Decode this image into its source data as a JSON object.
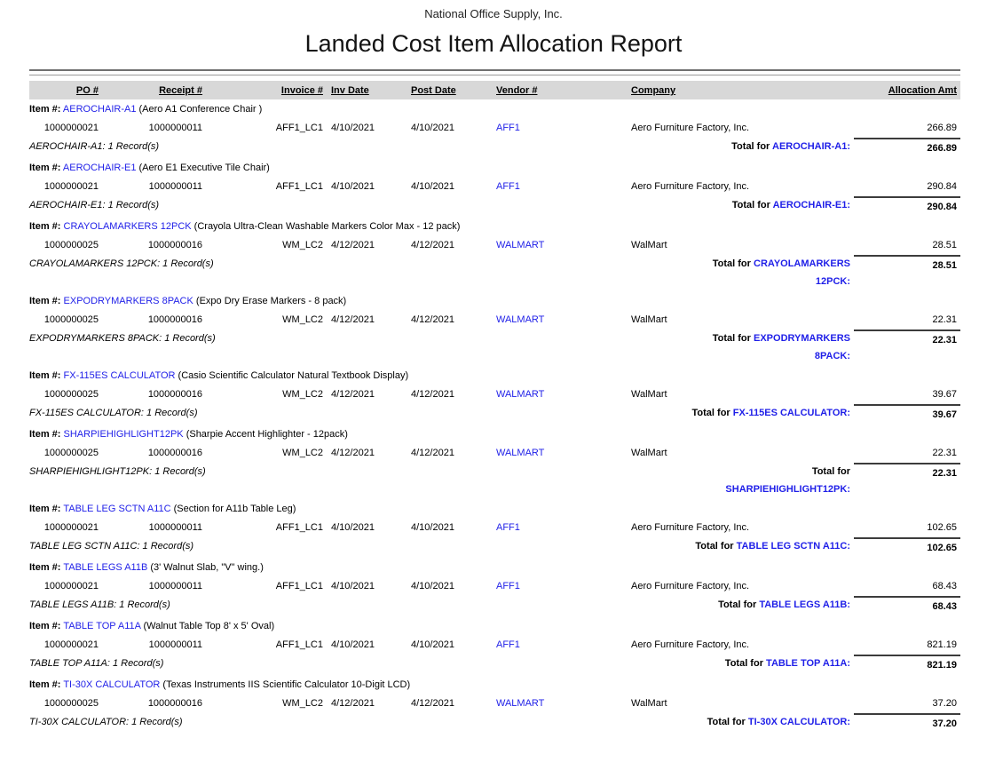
{
  "report": {
    "company_name": "National Office Supply, Inc.",
    "title": "Landed Cost Item Allocation Report"
  },
  "labels": {
    "item_prefix": "Item #:",
    "total_prefix": "Total for"
  },
  "columns": [
    "PO #",
    "Receipt #",
    "Invoice #",
    "Inv Date",
    "Post Date",
    "Vendor #",
    "Company",
    "Allocation Amt"
  ],
  "colors": {
    "link_blue": "#1f1fe8",
    "header_band": "#d8d8d8"
  },
  "groups": [
    {
      "item_code": "AEROCHAIR-A1",
      "item_desc": "(Aero A1 Conference Chair )",
      "rows": [
        {
          "po": "1000000021",
          "receipt": "1000000011",
          "invoice": "AFF1_LC1",
          "inv_date": "4/10/2021",
          "post_date": "4/10/2021",
          "vendor": "AFF1",
          "company": "Aero Furniture Factory, Inc.",
          "amount": "266.89"
        }
      ],
      "records_text": "AEROCHAIR-A1: 1 Record(s)",
      "total": {
        "prefix": "Total for",
        "code_line1": "AEROCHAIR-A1:",
        "code_line2": "",
        "amount": "266.89"
      }
    },
    {
      "item_code": "AEROCHAIR-E1",
      "item_desc": "(Aero E1 Executive Tile Chair)",
      "rows": [
        {
          "po": "1000000021",
          "receipt": "1000000011",
          "invoice": "AFF1_LC1",
          "inv_date": "4/10/2021",
          "post_date": "4/10/2021",
          "vendor": "AFF1",
          "company": "Aero Furniture Factory, Inc.",
          "amount": "290.84"
        }
      ],
      "records_text": "AEROCHAIR-E1: 1 Record(s)",
      "total": {
        "prefix": "Total for",
        "code_line1": "AEROCHAIR-E1:",
        "code_line2": "",
        "amount": "290.84"
      }
    },
    {
      "item_code": "CRAYOLAMARKERS 12PCK",
      "item_desc": "(Crayola Ultra-Clean Washable Markers Color Max - 12 pack)",
      "rows": [
        {
          "po": "1000000025",
          "receipt": "1000000016",
          "invoice": "WM_LC2",
          "inv_date": "4/12/2021",
          "post_date": "4/12/2021",
          "vendor": "WALMART",
          "company": "WalMart",
          "amount": "28.51"
        }
      ],
      "records_text": "CRAYOLAMARKERS 12PCK: 1 Record(s)",
      "total": {
        "prefix": "Total for",
        "code_line1": "CRAYOLAMARKERS",
        "code_line2": "12PCK:",
        "amount": "28.51"
      }
    },
    {
      "item_code": "EXPODRYMARKERS 8PACK",
      "item_desc": "(Expo Dry Erase Markers - 8 pack)",
      "rows": [
        {
          "po": "1000000025",
          "receipt": "1000000016",
          "invoice": "WM_LC2",
          "inv_date": "4/12/2021",
          "post_date": "4/12/2021",
          "vendor": "WALMART",
          "company": "WalMart",
          "amount": "22.31"
        }
      ],
      "records_text": "EXPODRYMARKERS 8PACK: 1 Record(s)",
      "total": {
        "prefix": "Total for",
        "code_line1": "EXPODRYMARKERS",
        "code_line2": "8PACK:",
        "amount": "22.31"
      }
    },
    {
      "item_code": "FX-115ES CALCULATOR",
      "item_desc": "(Casio Scientific Calculator Natural Textbook Display)",
      "rows": [
        {
          "po": "1000000025",
          "receipt": "1000000016",
          "invoice": "WM_LC2",
          "inv_date": "4/12/2021",
          "post_date": "4/12/2021",
          "vendor": "WALMART",
          "company": "WalMart",
          "amount": "39.67"
        }
      ],
      "records_text": "FX-115ES CALCULATOR: 1 Record(s)",
      "total": {
        "prefix": "Total for",
        "code_line1": "FX-115ES CALCULATOR:",
        "code_line2": "",
        "amount": "39.67"
      }
    },
    {
      "item_code": "SHARPIEHIGHLIGHT12PK",
      "item_desc": "(Sharpie Accent Highlighter - 12pack)",
      "rows": [
        {
          "po": "1000000025",
          "receipt": "1000000016",
          "invoice": "WM_LC2",
          "inv_date": "4/12/2021",
          "post_date": "4/12/2021",
          "vendor": "WALMART",
          "company": "WalMart",
          "amount": "22.31"
        }
      ],
      "records_text": "SHARPIEHIGHLIGHT12PK: 1 Record(s)",
      "total": {
        "prefix": "Total for",
        "code_line1": "",
        "code_line2": "SHARPIEHIGHLIGHT12PK:",
        "amount": "22.31"
      }
    },
    {
      "item_code": "TABLE LEG SCTN A11C",
      "item_desc": "(Section for A11b Table Leg)",
      "rows": [
        {
          "po": "1000000021",
          "receipt": "1000000011",
          "invoice": "AFF1_LC1",
          "inv_date": "4/10/2021",
          "post_date": "4/10/2021",
          "vendor": "AFF1",
          "company": "Aero Furniture Factory, Inc.",
          "amount": "102.65"
        }
      ],
      "records_text": "TABLE LEG SCTN A11C: 1 Record(s)",
      "total": {
        "prefix": "Total for",
        "code_line1": "TABLE LEG SCTN A11C:",
        "code_line2": "",
        "amount": "102.65"
      }
    },
    {
      "item_code": "TABLE LEGS A11B",
      "item_desc": "(3' Walnut Slab, \"V\" wing.)",
      "rows": [
        {
          "po": "1000000021",
          "receipt": "1000000011",
          "invoice": "AFF1_LC1",
          "inv_date": "4/10/2021",
          "post_date": "4/10/2021",
          "vendor": "AFF1",
          "company": "Aero Furniture Factory, Inc.",
          "amount": "68.43"
        }
      ],
      "records_text": "TABLE LEGS A11B: 1 Record(s)",
      "total": {
        "prefix": "Total for",
        "code_line1": "TABLE LEGS A11B:",
        "code_line2": "",
        "amount": "68.43"
      }
    },
    {
      "item_code": "TABLE TOP A11A",
      "item_desc": "(Walnut Table Top 8' x 5' Oval)",
      "rows": [
        {
          "po": "1000000021",
          "receipt": "1000000011",
          "invoice": "AFF1_LC1",
          "inv_date": "4/10/2021",
          "post_date": "4/10/2021",
          "vendor": "AFF1",
          "company": "Aero Furniture Factory, Inc.",
          "amount": "821.19"
        }
      ],
      "records_text": "TABLE TOP A11A: 1 Record(s)",
      "total": {
        "prefix": "Total for",
        "code_line1": "TABLE TOP A11A:",
        "code_line2": "",
        "amount": "821.19"
      }
    },
    {
      "item_code": "TI-30X CALCULATOR",
      "item_desc": "(Texas Instruments IIS Scientific Calculator 10-Digit LCD)",
      "rows": [
        {
          "po": "1000000025",
          "receipt": "1000000016",
          "invoice": "WM_LC2",
          "inv_date": "4/12/2021",
          "post_date": "4/12/2021",
          "vendor": "WALMART",
          "company": "WalMart",
          "amount": "37.20"
        }
      ],
      "records_text": "TI-30X CALCULATOR: 1 Record(s)",
      "total": {
        "prefix": "Total for",
        "code_line1": "TI-30X CALCULATOR:",
        "code_line2": "",
        "amount": "37.20"
      }
    }
  ]
}
